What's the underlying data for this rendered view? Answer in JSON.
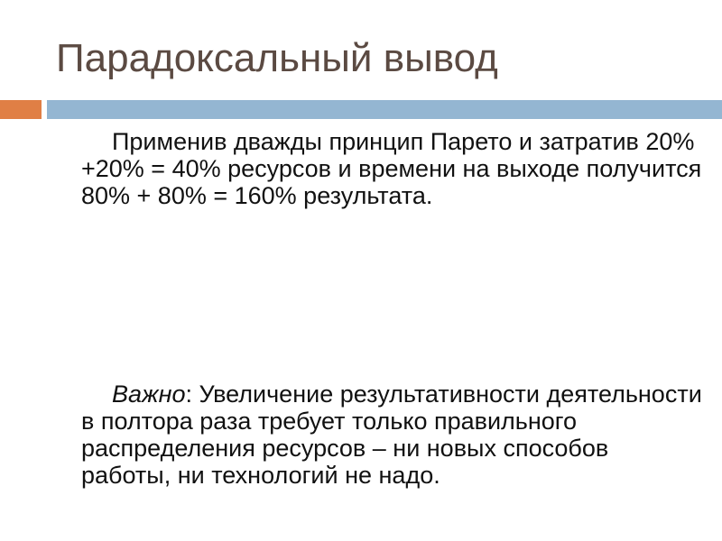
{
  "slide": {
    "title": "Парадоксальный вывод",
    "colors": {
      "accent_bar": "#e07f45",
      "main_bar": "#94b6d2",
      "title": "#5b4a42"
    },
    "paragraph1": "Применив дважды принцип Парето и затратив 20% +20% = 40% ресурсов и времени на выходе получится 80% + 80% = 160% результата.",
    "paragraph2_emphasis": "Важно",
    "paragraph2_rest": ": Увеличение результативности деятельности в полтора раза требует только правильного распределения ресурсов – ни новых способов работы, ни технологий не надо."
  }
}
